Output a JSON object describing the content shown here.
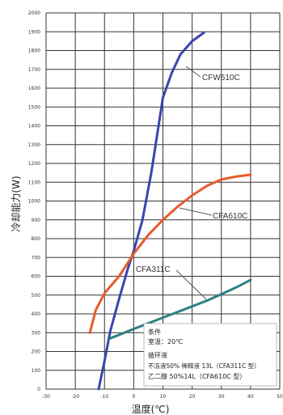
{
  "chart_data": {
    "type": "line",
    "xlabel": "温度(℃)",
    "ylabel": "冷却能力(W)",
    "xlim": [
      -30,
      50
    ],
    "ylim": [
      0,
      2000
    ],
    "x_ticks": [
      "-30",
      "-20",
      "-10",
      "0",
      "10",
      "20",
      "30",
      "40",
      "50"
    ],
    "y_ticks": [
      "0",
      "100",
      "200",
      "300",
      "400",
      "500",
      "600",
      "700",
      "800",
      "900",
      "1000",
      "1100",
      "1200",
      "1300",
      "1400",
      "1500",
      "1600",
      "1700",
      "1800",
      "1900",
      "2000"
    ],
    "grid": true,
    "series": [
      {
        "name": "CFW610C",
        "color": "#3a44b0",
        "points": [
          [
            -12,
            0
          ],
          [
            -10,
            150
          ],
          [
            -8,
            310
          ],
          [
            -5,
            480
          ],
          [
            -2,
            640
          ],
          [
            0,
            735
          ],
          [
            3,
            900
          ],
          [
            6,
            1150
          ],
          [
            8,
            1350
          ],
          [
            10,
            1550
          ],
          [
            13,
            1680
          ],
          [
            16,
            1780
          ],
          [
            20,
            1850
          ],
          [
            24,
            1895
          ]
        ]
      },
      {
        "name": "CFA610C",
        "color": "#e85a2c",
        "points": [
          [
            -15,
            300
          ],
          [
            -13,
            420
          ],
          [
            -10,
            510
          ],
          [
            -5,
            600
          ],
          [
            0,
            720
          ],
          [
            5,
            820
          ],
          [
            10,
            900
          ],
          [
            15,
            970
          ],
          [
            20,
            1030
          ],
          [
            25,
            1080
          ],
          [
            30,
            1115
          ],
          [
            35,
            1130
          ],
          [
            40,
            1140
          ]
        ]
      },
      {
        "name": "CFA311C",
        "color": "#2e8080",
        "points": [
          [
            -8,
            270
          ],
          [
            0,
            320
          ],
          [
            5,
            350
          ],
          [
            10,
            380
          ],
          [
            15,
            410
          ],
          [
            20,
            440
          ],
          [
            25,
            470
          ],
          [
            30,
            505
          ],
          [
            35,
            540
          ],
          [
            40,
            580
          ]
        ]
      }
    ],
    "note": {
      "lines": [
        "条件",
        "室温：20℃",
        "循环液",
        "不冻液50% 稀释液 13L（CFA311C 型）",
        "乙二醇 50%14L（CFA610C 型）"
      ]
    }
  }
}
